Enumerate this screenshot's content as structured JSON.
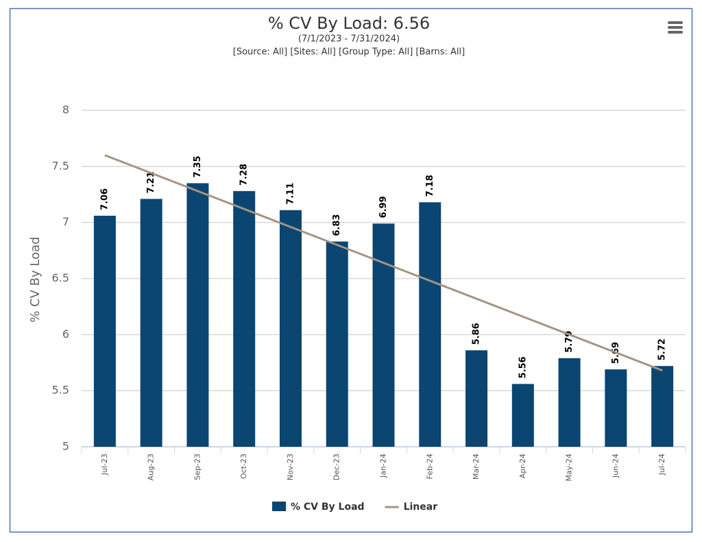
{
  "chart_data": {
    "type": "bar",
    "title": "% CV By Load: 6.56",
    "subtitle": [
      "(7/1/2023 - 7/31/2024)",
      "[Source: All] [Sites: All] [Group Type: All] [Barns: All]"
    ],
    "y_label": "% CV By Load",
    "categories": [
      "Jul-23",
      "Aug-23",
      "Sep-23",
      "Oct-23",
      "Nov-23",
      "Dec-23",
      "Jan-24",
      "Feb-24",
      "Mar-24",
      "Apr-24",
      "May-24",
      "Jun-24",
      "Jul-24"
    ],
    "series": [
      {
        "name": "% CV By Load",
        "type": "bar",
        "color": "#0b4572",
        "values": [
          7.06,
          7.21,
          7.35,
          7.28,
          7.11,
          6.83,
          6.99,
          7.18,
          5.86,
          5.56,
          5.79,
          5.69,
          5.72
        ]
      },
      {
        "name": "Linear",
        "type": "line",
        "color": "#a59483",
        "values": [
          7.6,
          7.44,
          7.28,
          7.12,
          6.96,
          6.8,
          6.64,
          6.48,
          6.32,
          6.16,
          6.0,
          5.84,
          5.68
        ]
      }
    ],
    "ylim": [
      5,
      8
    ],
    "yticks": [
      5,
      5.5,
      6,
      6.5,
      7,
      7.5,
      8
    ],
    "grid": true
  }
}
